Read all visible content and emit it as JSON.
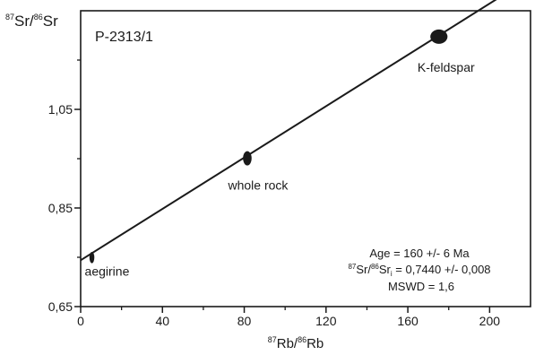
{
  "chart_data": {
    "type": "scatter",
    "title": "P-2313/1",
    "xlabel": {
      "mass1": "87",
      "el1": "Rb/",
      "mass2": "86",
      "el2": "Rb"
    },
    "ylabel": {
      "mass1": "87",
      "el1": "Sr/",
      "mass2": "86",
      "el2": "Sr"
    },
    "xlim": [
      0,
      220
    ],
    "ylim": [
      0.65,
      1.25
    ],
    "x_ticks": [
      {
        "value": 0,
        "label": "0"
      },
      {
        "value": 40,
        "label": "40"
      },
      {
        "value": 80,
        "label": "80"
      },
      {
        "value": 120,
        "label": "120"
      },
      {
        "value": 160,
        "label": "160"
      },
      {
        "value": 200,
        "label": "200"
      }
    ],
    "y_ticks": [
      {
        "value": 0.65,
        "label": "0,65"
      },
      {
        "value": 0.85,
        "label": "0,85"
      },
      {
        "value": 1.05,
        "label": "1,05"
      }
    ],
    "minor_y_ticks": [
      0.75,
      0.95,
      1.15
    ],
    "minor_x_ticks": [
      20,
      60,
      100,
      140,
      180
    ],
    "grid": false,
    "points": [
      {
        "name": "aegirine",
        "x": 5.5,
        "y": 0.7495,
        "rx": 1.2,
        "ry": 0.0115
      },
      {
        "name": "whole rock",
        "x": 81.5,
        "y": 0.9508,
        "rx": 2.1,
        "ry": 0.0145
      },
      {
        "name": "K-feldspar",
        "x": 175.2,
        "y": 1.1975,
        "rx": 4.2,
        "ry": 0.0145
      }
    ],
    "isochron": {
      "x": [
        0,
        220
      ],
      "y": [
        0.744,
        1.3167
      ]
    },
    "annotations": {
      "age": "Age = 160 +/- 6 Ma",
      "initial": {
        "mass1": "87",
        "el1": "Sr/",
        "mass2": "86",
        "el2": "Sr",
        "sub": "i",
        "value": " = 0,7440 +/- 0,008"
      },
      "mswd": "MSWD = 1,6"
    },
    "marker_color": "#1a1a1a",
    "line_color": "#1a1a1a"
  }
}
